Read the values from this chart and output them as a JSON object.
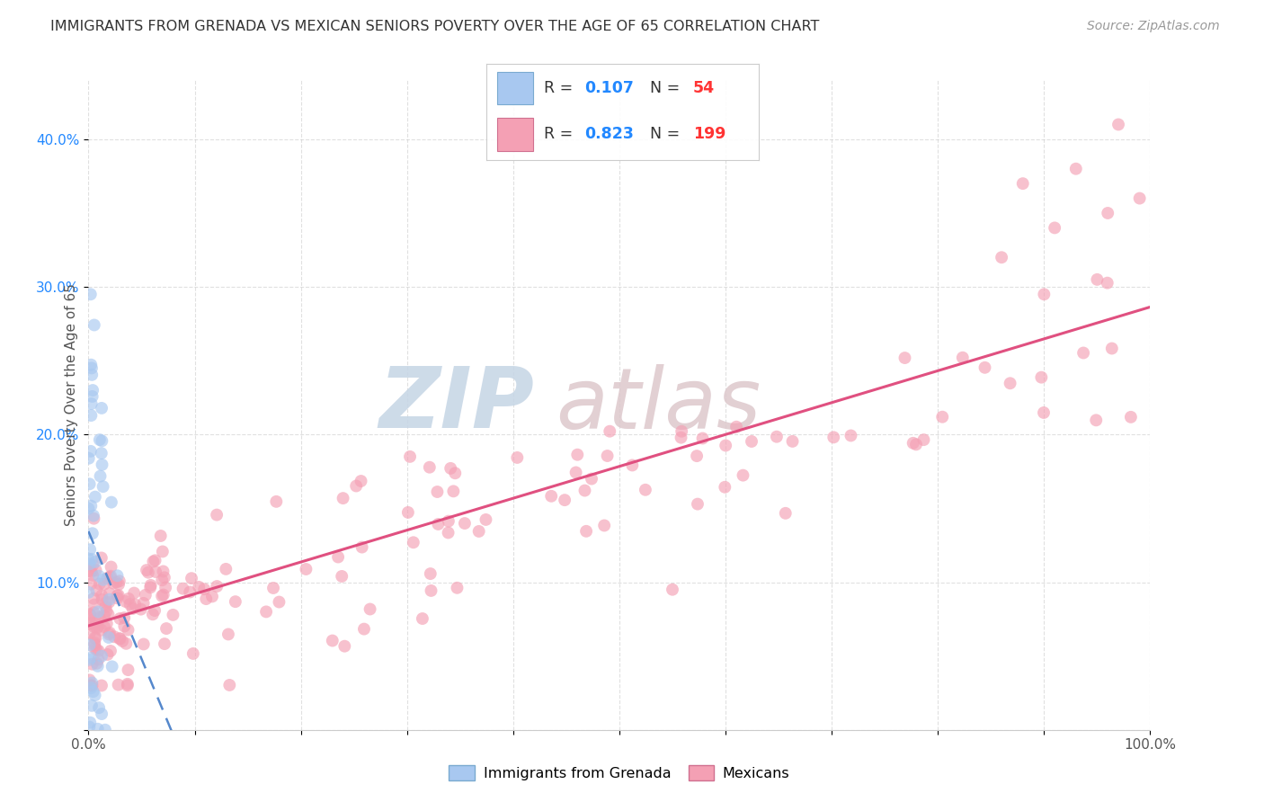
{
  "title": "IMMIGRANTS FROM GRENADA VS MEXICAN SENIORS POVERTY OVER THE AGE OF 65 CORRELATION CHART",
  "source": "Source: ZipAtlas.com",
  "ylabel": "Seniors Poverty Over the Age of 65",
  "grenada_R": 0.107,
  "grenada_N": 54,
  "mexican_R": 0.823,
  "mexican_N": 199,
  "grenada_color": "#a8c8f0",
  "grenada_edge_color": "#7aaad0",
  "grenada_line_color": "#5588cc",
  "mexican_color": "#f4a0b4",
  "mexican_edge_color": "#d07090",
  "mexican_line_color": "#e05080",
  "watermark_main_color": "#c0d4e8",
  "watermark_accent_color": "#d0b0c0",
  "background_color": "#ffffff",
  "grid_color": "#cccccc",
  "title_color": "#333333",
  "source_color": "#999999",
  "legend_R_color": "#2288ff",
  "legend_N_color": "#ff3333",
  "legend_text_color": "#333333",
  "yaxis_tick_color": "#2288ff",
  "xlim": [
    0,
    1.0
  ],
  "ylim": [
    0,
    0.44
  ],
  "xticks": [
    0.0,
    0.1,
    0.2,
    0.3,
    0.4,
    0.5,
    0.6,
    0.7,
    0.8,
    0.9,
    1.0
  ],
  "xticklabels": [
    "0.0%",
    "",
    "",
    "",
    "",
    "",
    "",
    "",
    "",
    "",
    "100.0%"
  ],
  "yticks": [
    0.0,
    0.1,
    0.2,
    0.3,
    0.4
  ],
  "yticklabels": [
    "",
    "10.0%",
    "20.0%",
    "30.0%",
    "40.0%"
  ],
  "marker_size": 100,
  "marker_alpha": 0.65
}
